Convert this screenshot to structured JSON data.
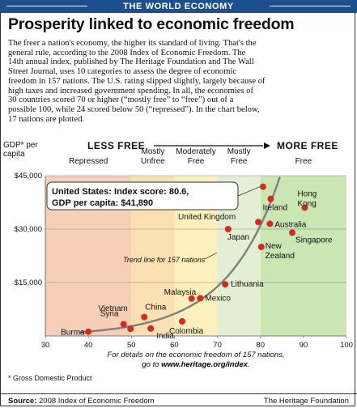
{
  "banner": "THE WORLD ECONOMY",
  "headline": "Prosperity linked to economic freedom",
  "body_lines": [
    "The freer a nation's economy, the higher its standard of living. That's the",
    "general rule, according to the 2008 Index of Economic Freedom. The",
    "14th annual index, published by The Heritage Foundation and The Wall",
    "Street Journal, uses 10 categories to assess the degree of economic",
    "freedom in 157 nations. The U.S. rating slipped slightly, largely because of",
    "high taxes and increased government spending. In all, the economies of",
    "30 countries scored 70 or higher (“mostly free” to “free”) out of a",
    "possible 100, while 24 scored below 50 (“repressed”). In the chart below,",
    "17 nations are plotted."
  ],
  "footnote": "* Gross Domestic Product",
  "source": {
    "label": "Source:",
    "text": " 2008 Index of Economic Freedom",
    "publisher": "The Heritage Foundation"
  },
  "colors": {
    "banner": "#1d4f8f",
    "repressed": "#f7cfb6",
    "mostly_unfree": "#fbe0b3",
    "moderately_free": "#fdf0bd",
    "mostly_free": "#e3efd2",
    "free": "#c9e6b3",
    "point": "#d62a1f",
    "trend": "#7f7f7f"
  },
  "chart_data": {
    "type": "scatter",
    "xlabel": "",
    "ylabel": "GDP* per capita",
    "xlim": [
      30,
      100
    ],
    "ylim": [
      0,
      45000
    ],
    "x_ticks": [
      30,
      40,
      50,
      60,
      70,
      80,
      90,
      100
    ],
    "y_ticks": [
      {
        "value": 15000,
        "label": "$15,000"
      },
      {
        "value": 30000,
        "label": "$30,000"
      },
      {
        "value": 45000,
        "label": "$45,000"
      }
    ],
    "direction": {
      "left": "LESS FREE",
      "right": "MORE FREE"
    },
    "bands": [
      {
        "from": 30,
        "to": 50,
        "label": [
          "Repressed"
        ],
        "color_key": "repressed"
      },
      {
        "from": 50,
        "to": 60,
        "label": [
          "Mostly",
          "Unfree"
        ],
        "color_key": "mostly_unfree"
      },
      {
        "from": 60,
        "to": 70,
        "label": [
          "Moderately",
          "Free"
        ],
        "color_key": "moderately_free"
      },
      {
        "from": 70,
        "to": 80,
        "label": [
          "Mostly",
          "Free"
        ],
        "color_key": "mostly_free"
      },
      {
        "from": 80,
        "to": 100,
        "label": [
          "Free"
        ],
        "color_key": "free"
      }
    ],
    "points": [
      {
        "name": "Burma",
        "x": 40,
        "y": 1200
      },
      {
        "name": "Syria",
        "x": 48.2,
        "y": 3300
      },
      {
        "name": "Vietnam",
        "x": 49.8,
        "y": 2000
      },
      {
        "name": "China",
        "x": 53,
        "y": 5300
      },
      {
        "name": "India",
        "x": 54.5,
        "y": 2100
      },
      {
        "name": "Colombia",
        "x": 61.8,
        "y": 4100
      },
      {
        "name": "Malaysia",
        "x": 64,
        "y": 10500
      },
      {
        "name": "Mexico",
        "x": 66,
        "y": 10600
      },
      {
        "name": "Lithuania",
        "x": 71.8,
        "y": 14500
      },
      {
        "name": "Japan",
        "x": 72.5,
        "y": 30000
      },
      {
        "name": "New Zealand",
        "x": 80.2,
        "y": 25000
      },
      {
        "name": "United Kingdom",
        "x": 79.5,
        "y": 32000
      },
      {
        "name": "United States",
        "x": 80.6,
        "y": 41890
      },
      {
        "name": "Ireland",
        "x": 82.4,
        "y": 38500
      },
      {
        "name": "Australia",
        "x": 82.2,
        "y": 31500
      },
      {
        "name": "Singapore",
        "x": 87.4,
        "y": 29000
      },
      {
        "name": "Hong Kong",
        "x": 90.3,
        "y": 36000
      }
    ],
    "trend_label": "Trend line for 157 nations",
    "callout": {
      "line1": "United States: Index score: 80.6,",
      "line2": "GDP per capita:  $41,890"
    },
    "note_line1": "For details on the economic freedom of 157 nations,",
    "note_line2_prefix": "go to ",
    "note_line2_url": "www.heritage.org/index",
    "note_line2_suffix": "."
  }
}
